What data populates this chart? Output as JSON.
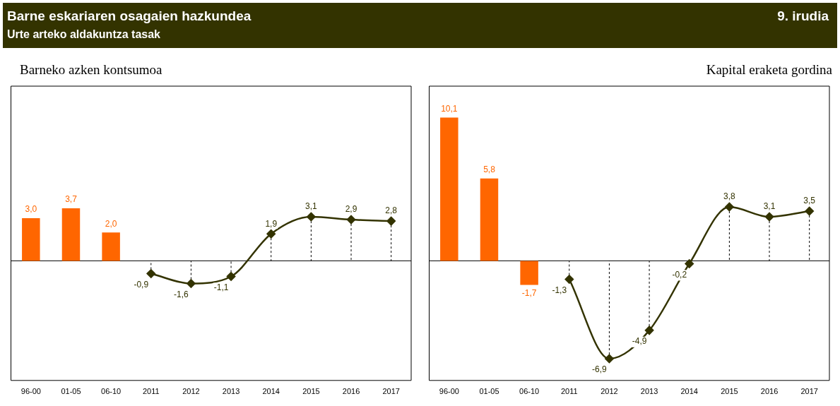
{
  "chart_data": [
    {
      "type": "bar",
      "title": "Barneko azken kontsumoa",
      "annotations": [
        "Barne eskariaren osagaien hazkundea",
        "Urte arteko aldakuntza tasak",
        "9. irudia"
      ],
      "categories": [
        "96-00",
        "01-05",
        "06-10",
        "2011",
        "2012",
        "2013",
        "2014",
        "2015",
        "2016",
        "2017"
      ],
      "series": [
        {
          "color": "#ff6600",
          "values": [
            3.0,
            3.7,
            2.0,
            null,
            null,
            null,
            null,
            null,
            null,
            null
          ],
          "value_labels": [
            "3,0",
            "3,7",
            "2,0",
            null,
            null,
            null,
            null,
            null,
            null,
            null
          ]
        },
        {
          "type": "line",
          "color": "#333300",
          "marker": "diamond",
          "values": [
            null,
            null,
            null,
            -0.9,
            -1.6,
            -1.1,
            1.9,
            3.1,
            2.9,
            2.8
          ],
          "value_labels": [
            null,
            null,
            null,
            "-0,9",
            "-1,6",
            "-1,1",
            "1,9",
            "3,1",
            "2,9",
            "2,8"
          ]
        }
      ],
      "legend": false,
      "grid": false
    },
    {
      "type": "bar",
      "title": "Kapital eraketa gordina",
      "categories": [
        "96-00",
        "01-05",
        "06-10",
        "2011",
        "2012",
        "2013",
        "2014",
        "2015",
        "2016",
        "2017"
      ],
      "series": [
        {
          "color": "#ff6600",
          "values": [
            10.1,
            5.8,
            -1.7,
            null,
            null,
            null,
            null,
            null,
            null,
            null
          ],
          "value_labels": [
            "10,1",
            "5,8",
            "-1,7",
            null,
            null,
            null,
            null,
            null,
            null,
            null
          ]
        },
        {
          "type": "line",
          "color": "#333300",
          "marker": "diamond",
          "values": [
            null,
            null,
            null,
            -1.3,
            -6.9,
            -4.9,
            -0.2,
            3.8,
            3.1,
            3.5
          ],
          "value_labels": [
            null,
            null,
            null,
            "-1,3",
            "-6,9",
            "-4,9",
            "-0,2",
            "3,8",
            "3,1",
            "3,5"
          ]
        }
      ],
      "legend": false,
      "grid": false
    }
  ]
}
